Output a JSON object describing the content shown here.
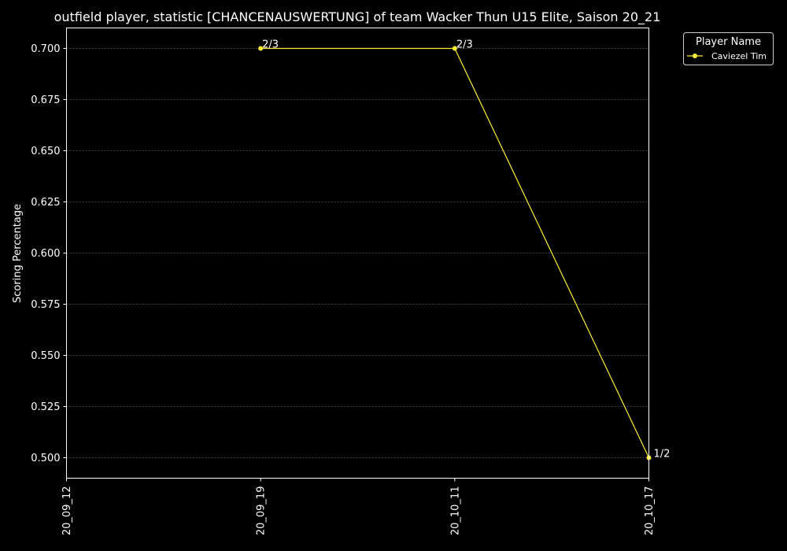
{
  "chart_data": {
    "type": "line",
    "title": "outfield player, statistic [CHANCENAUSWERTUNG] of team Wacker Thun U15 Elite, Saison 20_21",
    "ylabel": "Scoring Percentage",
    "xlabel": "",
    "categories": [
      "20_09_12",
      "20_09_19",
      "20_10_11",
      "20_10_17"
    ],
    "yticks": [
      "0.500",
      "0.525",
      "0.550",
      "0.575",
      "0.600",
      "0.625",
      "0.650",
      "0.675",
      "0.700"
    ],
    "ylim": [
      0.49,
      0.71
    ],
    "grid": true,
    "legend": {
      "title": "Player Name",
      "position": "upper-right-outside"
    },
    "series": [
      {
        "name": "Caviezel Tim",
        "color": "#ffee33",
        "points": [
          {
            "x": "20_09_19",
            "y": 0.7,
            "label": "2/3"
          },
          {
            "x": "20_10_11",
            "y": 0.7,
            "label": "2/3"
          },
          {
            "x": "20_10_17",
            "y": 0.5,
            "label": "1/2"
          }
        ]
      }
    ]
  }
}
